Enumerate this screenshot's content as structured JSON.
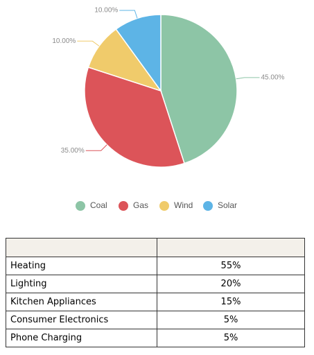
{
  "chart_data": {
    "type": "pie",
    "categories": [
      "Coal",
      "Gas",
      "Wind",
      "Solar"
    ],
    "values": [
      45,
      35,
      10,
      10
    ],
    "value_labels": [
      "45.00%",
      "35.00%",
      "10.00%",
      "10.00%"
    ],
    "colors": [
      "#8dc5a6",
      "#dc5459",
      "#f0cb6b",
      "#5db4e6"
    ],
    "legend": "bottom"
  },
  "table": {
    "rows": [
      [
        "Heating",
        "55%"
      ],
      [
        "Lighting",
        "20%"
      ],
      [
        "Kitchen Appliances",
        "15%"
      ],
      [
        "Consumer Electronics",
        "5%"
      ],
      [
        "Phone Charging",
        "5%"
      ]
    ]
  }
}
